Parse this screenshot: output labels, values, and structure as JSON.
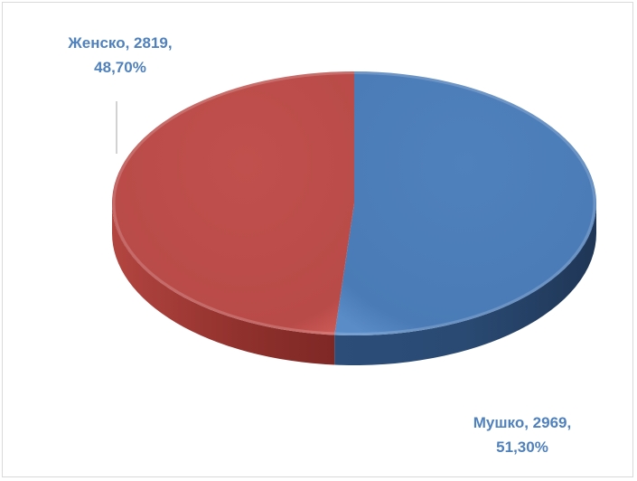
{
  "chart_data": {
    "type": "pie",
    "style": "3d",
    "categories": [
      "Мушко",
      "Женско"
    ],
    "values": [
      2969,
      2819
    ],
    "percentages": [
      "51,30%",
      "48,70%"
    ],
    "colors": [
      "#4f81bd",
      "#c0504d"
    ],
    "data_labels": [
      {
        "category": "Мушко",
        "value": "2969",
        "percent": "51,30%"
      },
      {
        "category": "Женско",
        "value": "2819",
        "percent": "48,70%"
      }
    ],
    "legend": "none",
    "label_color": "#4f81bd"
  }
}
